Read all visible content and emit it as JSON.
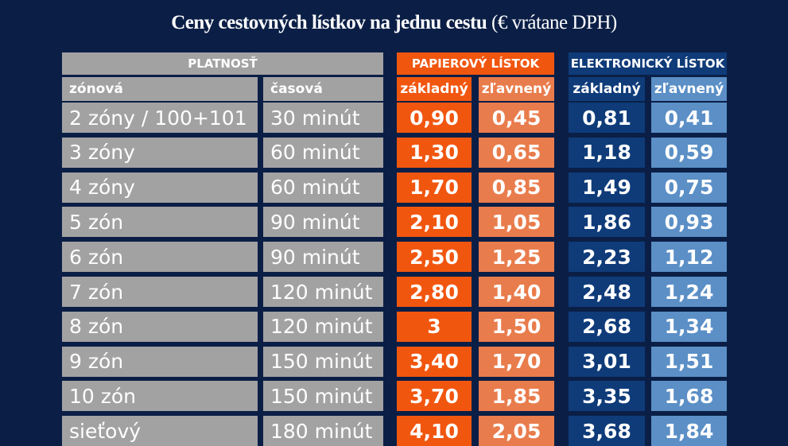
{
  "title": {
    "main": "Ceny cestovných lístkov na jednu cestu",
    "sub": "(€ vrátane DPH)"
  },
  "headers": {
    "validity": "PLATNOSŤ",
    "zone": "zónová",
    "time": "časová",
    "paper": "PAPIEROVÝ LÍSTOK",
    "electronic": "ELEKTRONICKÝ LÍSTOK",
    "paper_basic": "základný",
    "paper_discount": "zľavnený",
    "el_basic": "základný",
    "el_discount": "zľavnený"
  },
  "colors": {
    "background": "#0b1f46",
    "gray": "#a3a2a3",
    "paper_basic": "#f1560f",
    "paper_discount": "#e97c4c",
    "el_basic": "#0f3b79",
    "el_discount": "#5b8fc6"
  },
  "rows": [
    {
      "zone": "2 zóny / 100+101",
      "time": "30 minút",
      "pb": "0,90",
      "pd": "0,45",
      "eb": "0,81",
      "ed": "0,41"
    },
    {
      "zone": "3 zóny",
      "time": "60 minút",
      "pb": "1,30",
      "pd": "0,65",
      "eb": "1,18",
      "ed": "0,59"
    },
    {
      "zone": "4 zóny",
      "time": "60 minút",
      "pb": "1,70",
      "pd": "0,85",
      "eb": "1,49",
      "ed": "0,75"
    },
    {
      "zone": "5 zón",
      "time": "90 minút",
      "pb": "2,10",
      "pd": "1,05",
      "eb": "1,86",
      "ed": "0,93"
    },
    {
      "zone": "6 zón",
      "time": "90 minút",
      "pb": "2,50",
      "pd": "1,25",
      "eb": "2,23",
      "ed": "1,12"
    },
    {
      "zone": "7 zón",
      "time": "120 minút",
      "pb": "2,80",
      "pd": "1,40",
      "eb": "2,48",
      "ed": "1,24"
    },
    {
      "zone": "8 zón",
      "time": "120 minút",
      "pb": "3",
      "pd": "1,50",
      "eb": "2,68",
      "ed": "1,34"
    },
    {
      "zone": "9 zón",
      "time": "150 minút",
      "pb": "3,40",
      "pd": "1,70",
      "eb": "3,01",
      "ed": "1,51"
    },
    {
      "zone": "10 zón",
      "time": "150 minút",
      "pb": "3,70",
      "pd": "1,85",
      "eb": "3,35",
      "ed": "1,68"
    },
    {
      "zone": "sieťový",
      "time": "180 minút",
      "pb": "4,10",
      "pd": "2,05",
      "eb": "3,68",
      "ed": "1,84"
    }
  ]
}
